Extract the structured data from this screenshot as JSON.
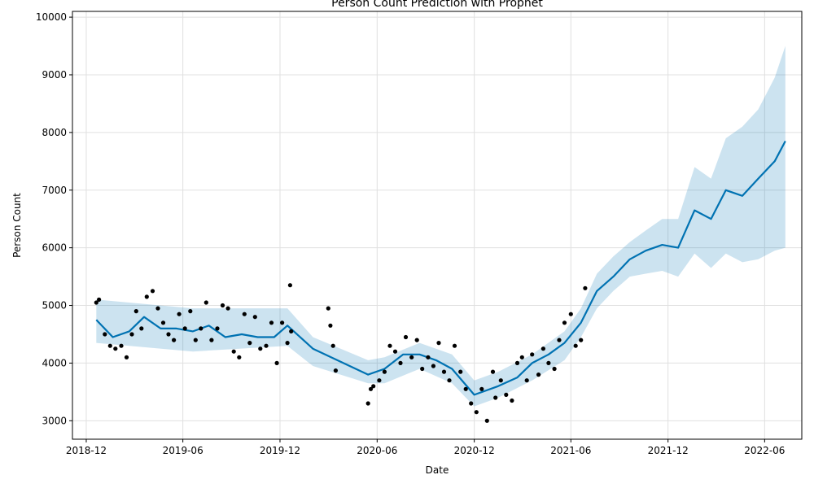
{
  "chart_data": {
    "type": "line",
    "title": "Person Count Prediction with Prophet",
    "xlabel": "Date",
    "ylabel": "Person Count",
    "xlim": [
      "2018-11-05",
      "2022-08-10"
    ],
    "ylim": [
      2680,
      10100
    ],
    "x_ticks": [
      "2018-12",
      "2019-06",
      "2019-12",
      "2020-06",
      "2020-12",
      "2021-06",
      "2021-12",
      "2022-06"
    ],
    "y_ticks": [
      3000,
      4000,
      5000,
      6000,
      7000,
      8000,
      9000,
      10000
    ],
    "grid": true,
    "colors": {
      "forecast_line": "#0072B2",
      "uncertainty_band": "#0072B2",
      "observed_points": "#000000",
      "grid": "#e0e0e0",
      "axis": "#000000"
    },
    "series": [
      {
        "kind": "forecast",
        "x": [
          "2018-12-20",
          "2019-01-20",
          "2019-02-20",
          "2019-03-20",
          "2019-04-20",
          "2019-05-20",
          "2019-06-20",
          "2019-07-20",
          "2019-08-20",
          "2019-09-20",
          "2019-10-20",
          "2019-11-20",
          "2019-12-15",
          "2020-02-01",
          "2020-05-15",
          "2020-06-15",
          "2020-07-20",
          "2020-08-20",
          "2020-09-20",
          "2020-10-20",
          "2020-12-01",
          "2021-01-15",
          "2021-02-20",
          "2021-03-20",
          "2021-04-20",
          "2021-05-20",
          "2021-06-20",
          "2021-07-20",
          "2021-08-20",
          "2021-09-20",
          "2021-10-20",
          "2021-11-20",
          "2021-12-20",
          "2022-01-20",
          "2022-02-20",
          "2022-03-20",
          "2022-04-20",
          "2022-05-20",
          "2022-06-20",
          "2022-07-10"
        ],
        "values": [
          4750,
          4450,
          4550,
          4800,
          4600,
          4600,
          4550,
          4650,
          4450,
          4500,
          4450,
          4450,
          4650,
          4250,
          3800,
          3900,
          4150,
          4150,
          4050,
          3900,
          3450,
          3600,
          3750,
          4000,
          4150,
          4350,
          4700,
          5250,
          5500,
          5800,
          5950,
          6050,
          6000,
          6650,
          6500,
          7000,
          6900,
          7200,
          7500,
          7850
        ]
      },
      {
        "kind": "uncertainty_lower",
        "x": [
          "2018-12-20",
          "2019-06-20",
          "2019-12-15",
          "2020-02-01",
          "2020-05-15",
          "2020-06-15",
          "2020-08-20",
          "2020-10-20",
          "2020-12-01",
          "2021-01-15",
          "2021-03-20",
          "2021-05-20",
          "2021-06-20",
          "2021-07-20",
          "2021-08-20",
          "2021-09-20",
          "2021-10-20",
          "2021-11-20",
          "2021-12-20",
          "2022-01-20",
          "2022-02-20",
          "2022-03-20",
          "2022-04-20",
          "2022-05-20",
          "2022-06-20",
          "2022-07-10"
        ],
        "values": [
          4350,
          4200,
          4300,
          3950,
          3650,
          3650,
          3900,
          3650,
          3250,
          3400,
          3700,
          4050,
          4450,
          4950,
          5250,
          5500,
          5550,
          5600,
          5500,
          5900,
          5650,
          5900,
          5750,
          5800,
          5950,
          6000
        ]
      },
      {
        "kind": "uncertainty_upper",
        "x": [
          "2018-12-20",
          "2019-06-20",
          "2019-12-15",
          "2020-02-01",
          "2020-05-15",
          "2020-06-15",
          "2020-08-20",
          "2020-10-20",
          "2020-12-01",
          "2021-01-15",
          "2021-03-20",
          "2021-05-20",
          "2021-06-20",
          "2021-07-20",
          "2021-08-20",
          "2021-09-20",
          "2021-10-20",
          "2021-11-20",
          "2021-12-20",
          "2022-01-20",
          "2022-02-20",
          "2022-03-20",
          "2022-04-20",
          "2022-05-20",
          "2022-06-20",
          "2022-07-10"
        ],
        "values": [
          5100,
          4950,
          4950,
          4450,
          4050,
          4100,
          4350,
          4150,
          3700,
          3850,
          4150,
          4550,
          4950,
          5550,
          5850,
          6100,
          6300,
          6500,
          6500,
          7400,
          7200,
          7900,
          8100,
          8400,
          8950,
          9500
        ]
      },
      {
        "kind": "observed",
        "x": [
          "2018-12-20",
          "2018-12-25",
          "2019-01-05",
          "2019-01-15",
          "2019-01-25",
          "2019-02-05",
          "2019-02-15",
          "2019-02-25",
          "2019-03-05",
          "2019-03-15",
          "2019-03-25",
          "2019-04-05",
          "2019-04-15",
          "2019-04-25",
          "2019-05-05",
          "2019-05-15",
          "2019-05-25",
          "2019-06-05",
          "2019-06-15",
          "2019-06-25",
          "2019-07-05",
          "2019-07-15",
          "2019-07-25",
          "2019-08-05",
          "2019-08-15",
          "2019-08-25",
          "2019-09-05",
          "2019-09-15",
          "2019-09-25",
          "2019-10-05",
          "2019-10-15",
          "2019-10-25",
          "2019-11-05",
          "2019-11-15",
          "2019-11-25",
          "2019-12-05",
          "2019-12-15",
          "2019-12-20",
          "2019-12-22",
          "2020-03-01",
          "2020-03-05",
          "2020-03-10",
          "2020-03-15",
          "2020-05-15",
          "2020-05-20",
          "2020-05-25",
          "2020-06-05",
          "2020-06-15",
          "2020-06-25",
          "2020-07-05",
          "2020-07-15",
          "2020-07-25",
          "2020-08-05",
          "2020-08-15",
          "2020-08-25",
          "2020-09-05",
          "2020-09-15",
          "2020-09-25",
          "2020-10-05",
          "2020-10-15",
          "2020-10-25",
          "2020-11-05",
          "2020-11-15",
          "2020-11-25",
          "2020-12-05",
          "2020-12-15",
          "2020-12-25",
          "2021-01-05",
          "2021-01-10",
          "2021-01-20",
          "2021-01-30",
          "2021-02-10",
          "2021-02-20",
          "2021-03-01",
          "2021-03-10",
          "2021-03-20",
          "2021-04-01",
          "2021-04-10",
          "2021-04-20",
          "2021-05-01",
          "2021-05-10",
          "2021-05-20",
          "2021-06-01",
          "2021-06-10",
          "2021-06-20",
          "2021-06-28"
        ],
        "values": [
          5050,
          5100,
          4500,
          4300,
          4250,
          4300,
          4100,
          4500,
          4900,
          4600,
          5150,
          5250,
          4950,
          4700,
          4500,
          4400,
          4850,
          4600,
          4900,
          4400,
          4600,
          5050,
          4400,
          4600,
          5000,
          4950,
          4200,
          4100,
          4850,
          4350,
          4800,
          4250,
          4300,
          4700,
          4000,
          4700,
          4350,
          5350,
          4550,
          4950,
          4650,
          4300,
          3870,
          3300,
          3550,
          3600,
          3700,
          3850,
          4300,
          4200,
          4000,
          4450,
          4100,
          4400,
          3900,
          4100,
          3950,
          4350,
          3850,
          3700,
          4300,
          3850,
          3550,
          3300,
          3150,
          3550,
          3000,
          3850,
          3400,
          3700,
          3450,
          3350,
          4000,
          4100,
          3700,
          4150,
          3800,
          4250,
          4000,
          3900,
          4400,
          4700,
          4850,
          4300,
          4400,
          5300
        ]
      }
    ]
  }
}
